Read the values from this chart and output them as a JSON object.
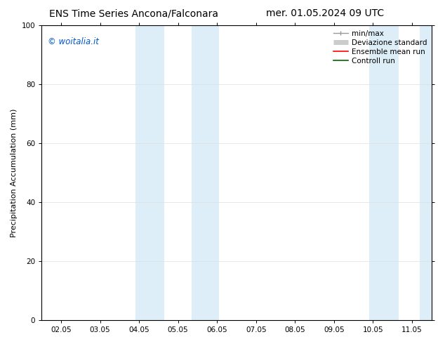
{
  "title_left": "ENS Time Series Ancona/Falconara",
  "title_right": "mer. 01.05.2024 09 UTC",
  "ylabel": "Precipitation Accumulation (mm)",
  "ylim": [
    0,
    100
  ],
  "yticks": [
    0,
    20,
    40,
    60,
    80,
    100
  ],
  "x_tick_labels": [
    "02.05",
    "03.05",
    "04.05",
    "05.05",
    "06.05",
    "07.05",
    "08.05",
    "09.05",
    "10.05",
    "11.05"
  ],
  "x_num_ticks": 10,
  "shaded_bands": [
    {
      "xmin": 2.55,
      "xmax": 3.15,
      "color": "#ddeef8"
    },
    {
      "xmin": 3.45,
      "xmax": 4.05,
      "color": "#ddeef8"
    },
    {
      "xmin": 7.55,
      "xmax": 8.15,
      "color": "#ddeef8"
    },
    {
      "xmin": 8.45,
      "xmax": 9.05,
      "color": "#ddeef8"
    }
  ],
  "watermark_text": "© woitalia.it",
  "watermark_color": "#0055cc",
  "background_color": "#ffffff",
  "legend_entries": [
    {
      "label": "min/max",
      "color": "#999999",
      "linewidth": 1.0
    },
    {
      "label": "Deviazione standard",
      "color": "#cccccc",
      "linewidth": 5
    },
    {
      "label": "Ensemble mean run",
      "color": "#ff0000",
      "linewidth": 1.2
    },
    {
      "label": "Controll run",
      "color": "#006600",
      "linewidth": 1.2
    }
  ],
  "title_fontsize": 10,
  "axis_label_fontsize": 8,
  "tick_fontsize": 7.5,
  "legend_fontsize": 7.5
}
